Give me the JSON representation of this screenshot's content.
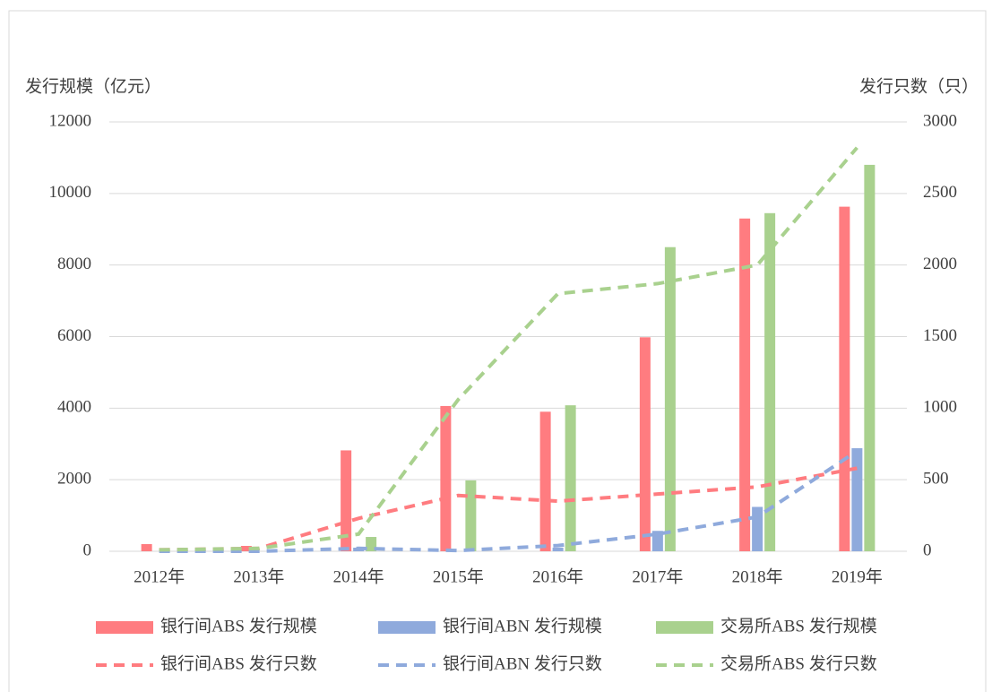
{
  "chart_data": {
    "type": "combo",
    "y_label": "发行规模（亿元）",
    "y2_label": "发行只数（只）",
    "categories": [
      "2012年",
      "2013年",
      "2014年",
      "2015年",
      "2016年",
      "2017年",
      "2018年",
      "2019年"
    ],
    "ylim": [
      0,
      12000
    ],
    "yticks": [
      0,
      2000,
      4000,
      6000,
      8000,
      10000,
      12000
    ],
    "y2lim": [
      0,
      3000
    ],
    "y2ticks": [
      0,
      500,
      1000,
      1500,
      2000,
      2500,
      3000
    ],
    "grid": true,
    "series": [
      {
        "name": "银行间ABS 发行规模",
        "kind": "bar",
        "color": "#ff7c80",
        "values": [
          200,
          150,
          2820,
          4060,
          3900,
          5980,
          9300,
          9630
        ]
      },
      {
        "name": "银行间ABN 发行规模",
        "kind": "bar",
        "color": "#8faadc",
        "values": [
          0,
          0,
          100,
          0,
          100,
          570,
          1240,
          2880
        ]
      },
      {
        "name": "交易所ABS 发行规模",
        "kind": "bar",
        "color": "#a9d18e",
        "values": [
          0,
          0,
          400,
          1980,
          4080,
          8500,
          9450,
          10800
        ]
      },
      {
        "name": "银行间ABS 发行只数",
        "kind": "line",
        "line_style": "dashed",
        "axis": "y2",
        "color": "#ff7c80",
        "values": [
          10,
          20,
          230,
          390,
          350,
          400,
          450,
          580
        ]
      },
      {
        "name": "银行间ABN 发行只数",
        "kind": "line",
        "line_style": "dashed",
        "axis": "y2",
        "color": "#8faadc",
        "values": [
          0,
          0,
          20,
          5,
          40,
          120,
          240,
          700
        ]
      },
      {
        "name": "交易所ABS 发行只数",
        "kind": "line",
        "line_style": "dashed",
        "axis": "y2",
        "color": "#a9d18e",
        "values": [
          10,
          20,
          120,
          1060,
          1800,
          1870,
          2000,
          2820
        ]
      }
    ]
  }
}
